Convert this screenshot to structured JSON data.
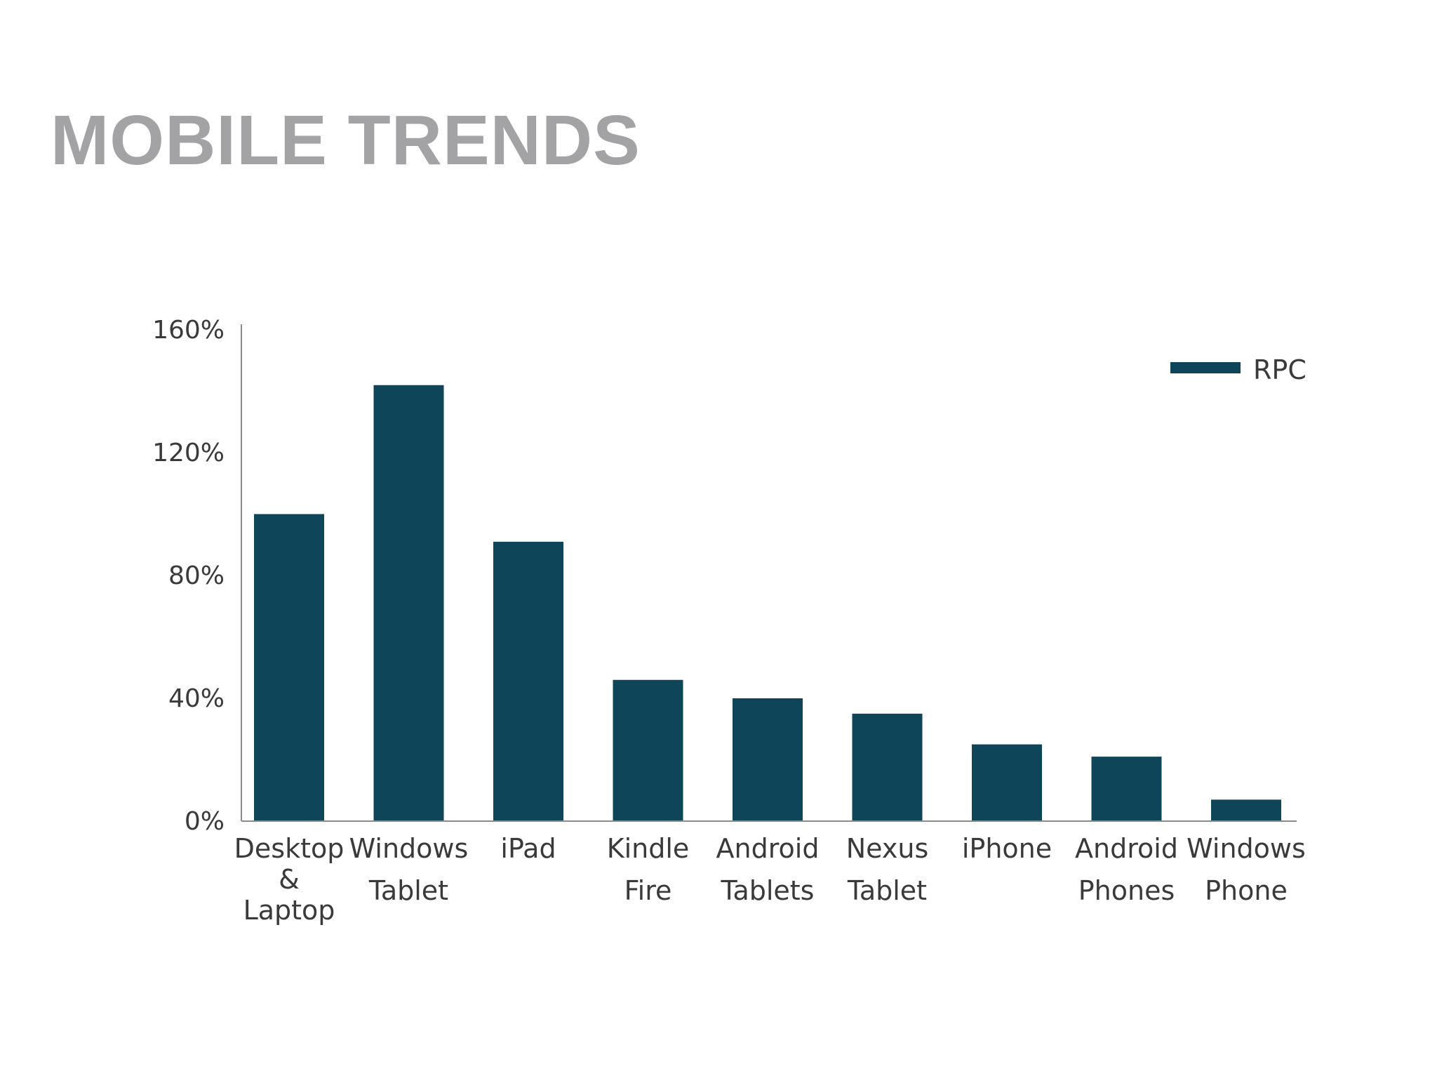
{
  "slide": {
    "title": "MOBILE TRENDS"
  },
  "chart_data": {
    "type": "bar",
    "title": "",
    "xlabel": "",
    "ylabel": "",
    "categories": [
      "Desktop & Laptop",
      "Windows Tablet",
      "iPad",
      "Kindle Fire",
      "Android Tablets",
      "Nexus Tablet",
      "iPhone",
      "Android Phones",
      "Windows Phone"
    ],
    "category_label_lines": [
      [
        "Desktop",
        "&",
        "Laptop"
      ],
      [
        "Windows",
        "Tablet"
      ],
      [
        "iPad"
      ],
      [
        "Kindle",
        "Fire"
      ],
      [
        "Android",
        "Tablets"
      ],
      [
        "Nexus",
        "Tablet"
      ],
      [
        "iPhone"
      ],
      [
        "Android",
        "Phones"
      ],
      [
        "Windows",
        "Phone"
      ]
    ],
    "series": [
      {
        "name": "RPC",
        "color": "#0e4559",
        "values": [
          100,
          142,
          91,
          46,
          40,
          35,
          25,
          21,
          7
        ]
      }
    ],
    "ylim": [
      0,
      160
    ],
    "yticks": [
      0,
      40,
      80,
      120,
      160
    ],
    "ytick_labels": [
      "0%",
      "40%",
      "80%",
      "120%",
      "160%"
    ],
    "grid": false,
    "legend": "top-right",
    "colors": {
      "bar": "#0e4559",
      "axis": "#8c8c8c",
      "text": "#3a3a3a",
      "title": "#a3a3a6"
    }
  }
}
